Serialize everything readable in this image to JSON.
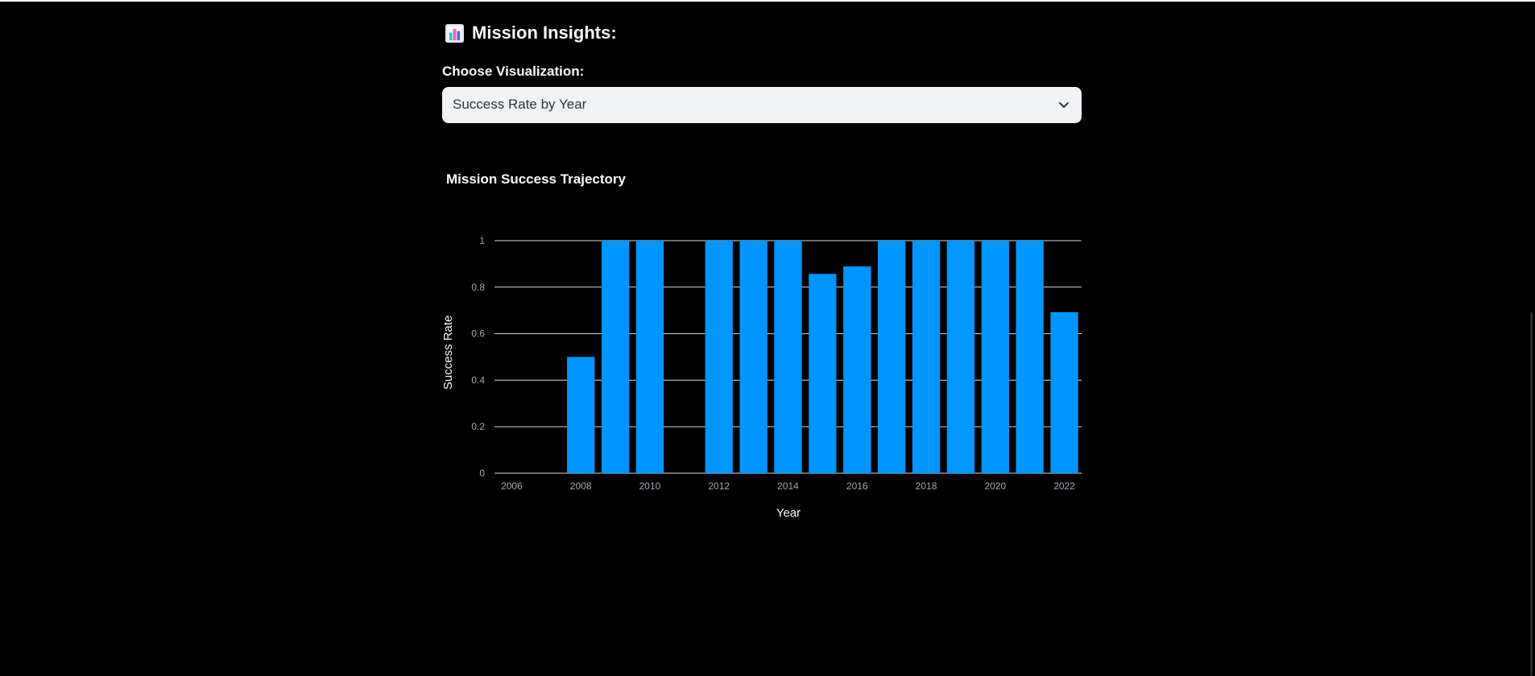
{
  "page": {
    "header_title": "Mission Insights:",
    "header_icon": "bar-chart-icon",
    "select_label": "Choose Visualization:",
    "select_value": "Success Rate by Year",
    "select_icon": "chevron-down-icon"
  },
  "colors": {
    "background": "#000000",
    "bar": "#0095ff",
    "text": "#fafafa",
    "tick": "#a3a8b8",
    "grid": "#ffffff",
    "select_bg": "#f0f2f6"
  },
  "chart_data": {
    "type": "bar",
    "title": "Mission Success Trajectory",
    "xlabel": "Year",
    "ylabel": "Success Rate",
    "xlim": [
      2005.5,
      2022.5
    ],
    "ylim": [
      0,
      1
    ],
    "x_ticks": [
      2006,
      2008,
      2010,
      2012,
      2014,
      2016,
      2018,
      2020,
      2022
    ],
    "y_ticks": [
      0,
      0.2,
      0.4,
      0.6,
      0.8,
      1
    ],
    "categories": [
      2008,
      2009,
      2010,
      2012,
      2013,
      2014,
      2015,
      2016,
      2017,
      2018,
      2019,
      2020,
      2021,
      2022
    ],
    "values": [
      0.5,
      1,
      1,
      1,
      1,
      1,
      0.857,
      0.889,
      1,
      1,
      1,
      1,
      1,
      0.692
    ],
    "grid": true,
    "legend": "none"
  }
}
